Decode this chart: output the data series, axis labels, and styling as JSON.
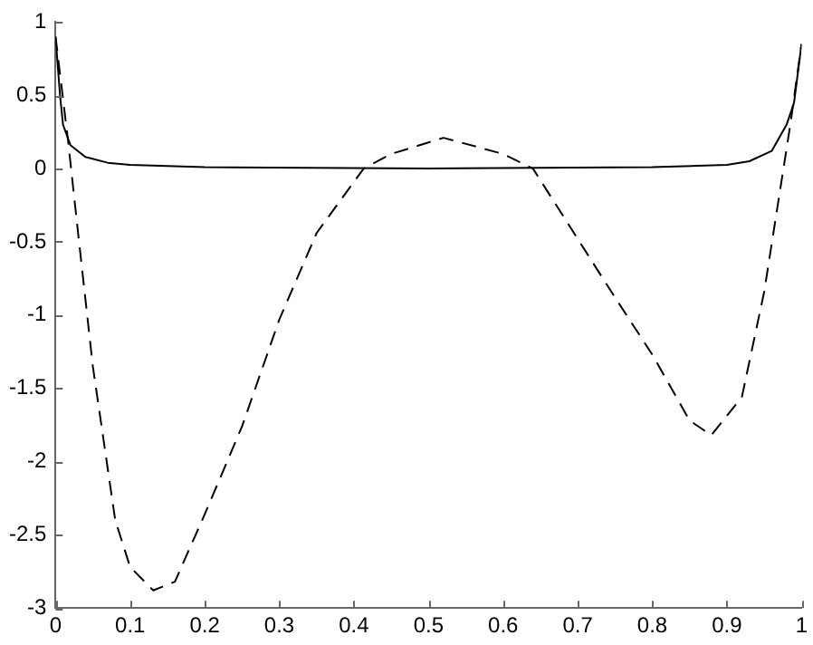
{
  "chart_data": {
    "type": "line",
    "xlim": [
      0,
      1
    ],
    "ylim": [
      -3,
      1
    ],
    "xticks": [
      0,
      0.1,
      0.2,
      0.3,
      0.4,
      0.5,
      0.6,
      0.7,
      0.8,
      0.9,
      1
    ],
    "yticks": [
      -3,
      -2.5,
      -2,
      -1.5,
      -1,
      -0.5,
      0,
      0.5,
      1
    ],
    "grid": false,
    "legend": false,
    "marker": "none",
    "series": [
      {
        "color": "#000000",
        "line_style": "solid",
        "x": [
          0,
          0.006,
          0.01,
          0.02,
          0.04,
          0.07,
          0.1,
          0.2,
          0.5,
          0.8,
          0.9,
          0.93,
          0.96,
          0.98,
          0.99,
          1
        ],
        "values": [
          0.9,
          0.5,
          0.3,
          0.16,
          0.08,
          0.04,
          0.025,
          0.01,
          0,
          0.01,
          0.025,
          0.05,
          0.12,
          0.3,
          0.45,
          0.85
        ]
      },
      {
        "color": "#000000",
        "line_style": "dashed",
        "x": [
          0,
          0.017,
          0.03,
          0.05,
          0.08,
          0.1,
          0.131,
          0.16,
          0.2,
          0.25,
          0.3,
          0.35,
          0.413,
          0.45,
          0.52,
          0.6,
          0.64,
          0.7,
          0.75,
          0.8,
          0.85,
          0.879,
          0.92,
          0.95,
          0.985,
          1
        ],
        "values": [
          0.9,
          0.18,
          -0.43,
          -1.35,
          -2.4,
          -2.72,
          -2.88,
          -2.82,
          -2.36,
          -1.76,
          -1.03,
          -0.44,
          0,
          0.1,
          0.21,
          0.1,
          0,
          -0.48,
          -0.88,
          -1.27,
          -1.72,
          -1.82,
          -1.56,
          -0.84,
          0.3,
          0.85
        ]
      }
    ]
  }
}
